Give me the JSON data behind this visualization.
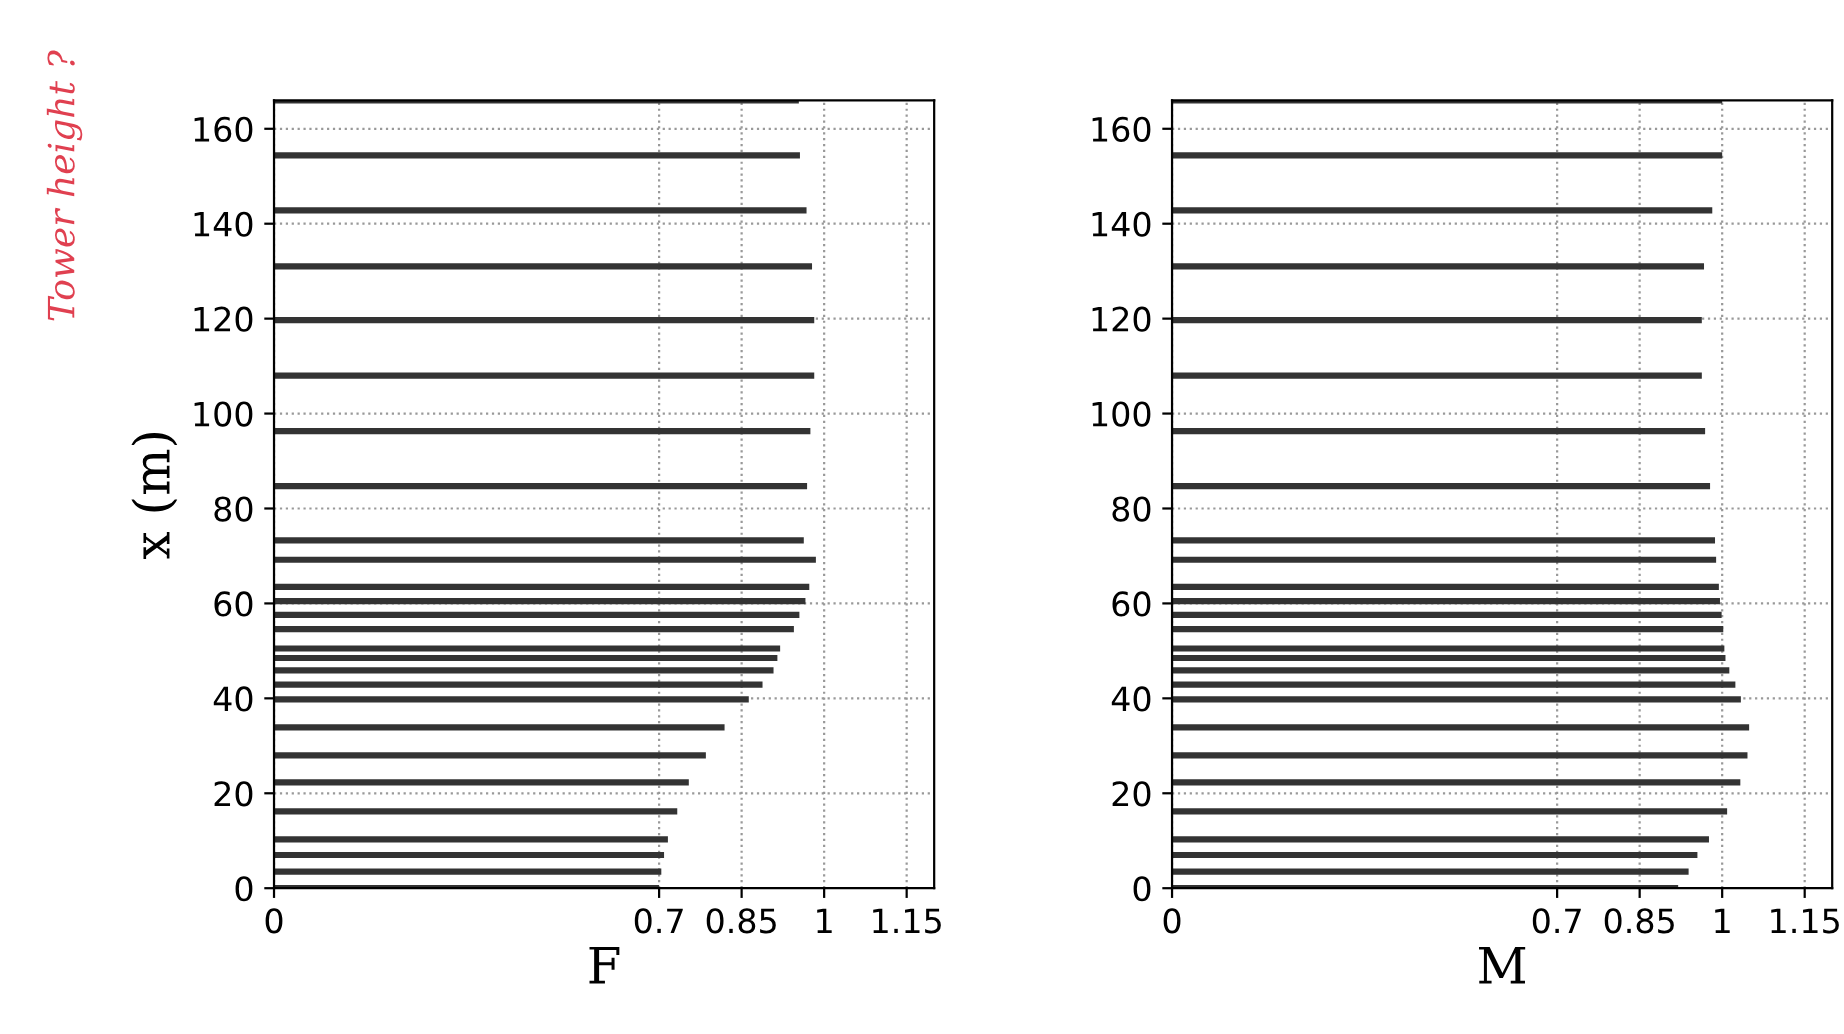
{
  "chart_data": [
    {
      "type": "bar",
      "orientation": "horizontal",
      "xlabel": "F",
      "ylabel": "x (m)",
      "annotations": [
        "Tower height ?"
      ],
      "x": [
        0,
        3.5,
        7,
        10.3,
        16.2,
        22.3,
        28,
        33.9,
        39.8,
        42.9,
        45.9,
        48.5,
        50.5,
        54.6,
        57.6,
        60.5,
        63.5,
        69.2,
        73.3,
        84.7,
        96.3,
        108,
        119.7,
        131,
        142.8,
        154.4,
        166
      ],
      "values": [
        0.7,
        0.704,
        0.709,
        0.716,
        0.733,
        0.754,
        0.785,
        0.819,
        0.863,
        0.888,
        0.908,
        0.915,
        0.92,
        0.945,
        0.955,
        0.966,
        0.973,
        0.985,
        0.963,
        0.969,
        0.975,
        0.982,
        0.982,
        0.978,
        0.968,
        0.956,
        0.954
      ],
      "color": "#333333",
      "xlim": [
        0,
        1.2
      ],
      "xticks": [
        0,
        0.7,
        0.85,
        1,
        1.15
      ],
      "ylim": [
        0,
        166
      ],
      "yticks": [
        0,
        20,
        40,
        60,
        80,
        100,
        120,
        140,
        160
      ],
      "grid": true
    },
    {
      "type": "bar",
      "orientation": "horizontal",
      "xlabel": "M",
      "x": [
        0,
        3.5,
        7,
        10.3,
        16.2,
        22.3,
        28,
        33.9,
        39.8,
        42.9,
        45.9,
        48.5,
        50.5,
        54.6,
        57.6,
        60.5,
        63.5,
        69.2,
        73.3,
        84.7,
        96.3,
        108,
        119.7,
        131,
        142.8,
        154.4,
        166
      ],
      "values": [
        0.92,
        0.939,
        0.955,
        0.976,
        1.009,
        1.033,
        1.046,
        1.049,
        1.034,
        1.024,
        1.013,
        1.006,
        1.004,
        1.002,
        0.999,
        0.996,
        0.994,
        0.989,
        0.987,
        0.978,
        0.969,
        0.963,
        0.963,
        0.967,
        0.982,
        1.0,
        1.0
      ],
      "color": "#333333",
      "xlim": [
        0,
        1.2
      ],
      "xticks": [
        0,
        0.7,
        0.85,
        1,
        1.15
      ],
      "ylim": [
        0,
        166
      ],
      "yticks": [
        0,
        20,
        40,
        60,
        80,
        100,
        120,
        140,
        160
      ],
      "grid": true
    }
  ]
}
